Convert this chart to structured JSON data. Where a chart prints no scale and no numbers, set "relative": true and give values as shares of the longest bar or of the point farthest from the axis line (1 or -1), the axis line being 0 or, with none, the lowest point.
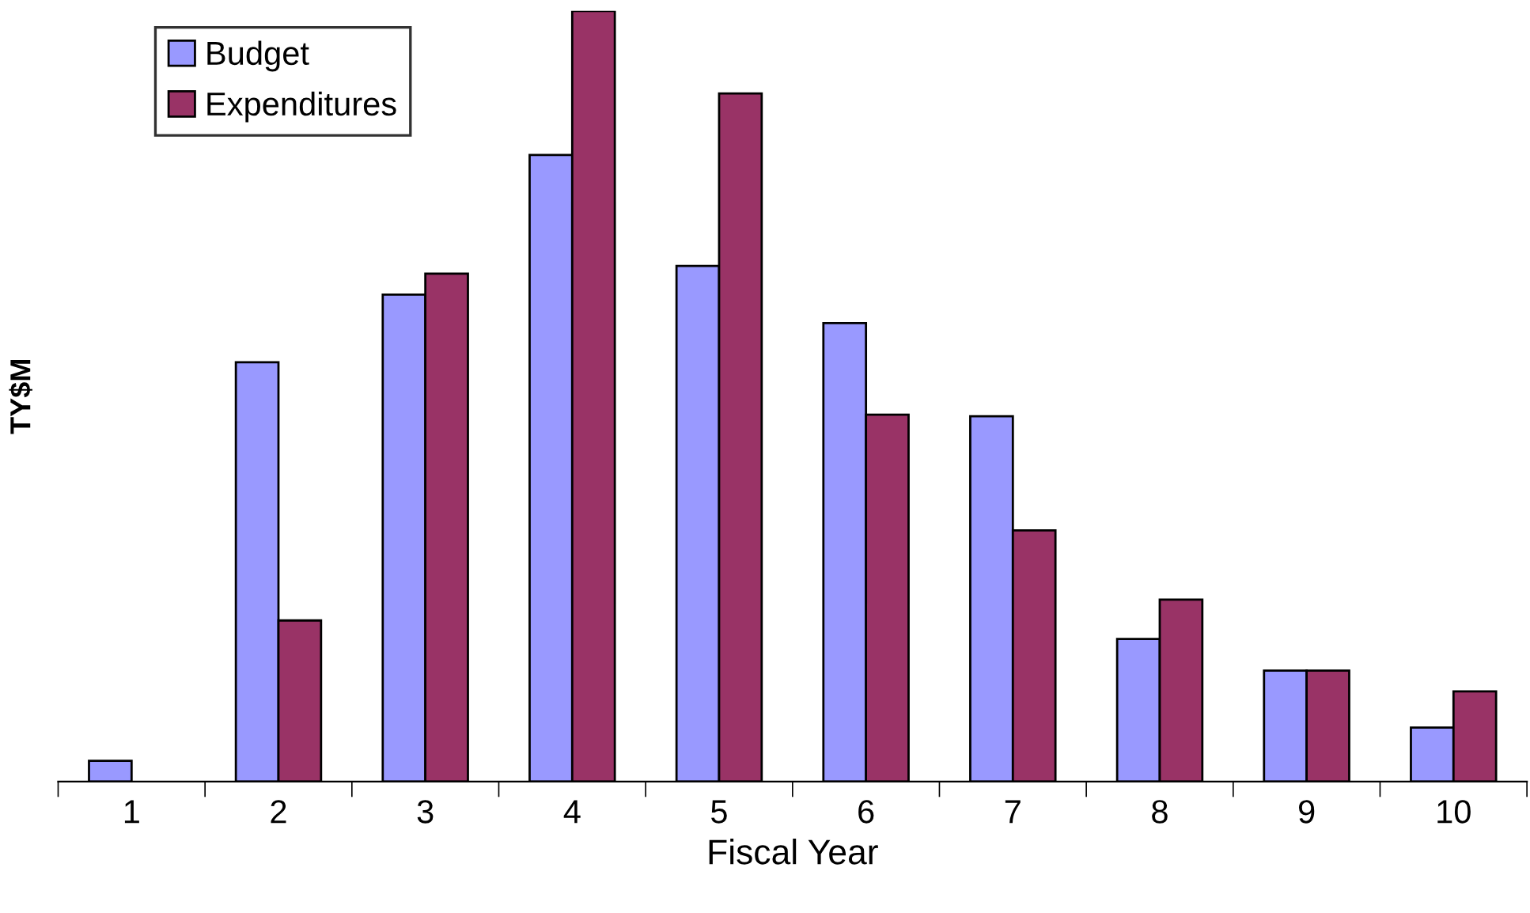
{
  "chart_data": {
    "type": "bar",
    "relative": true,
    "xlabel": "Fiscal Year",
    "ylabel": "TY$M",
    "categories": [
      "1",
      "2",
      "3",
      "4",
      "5",
      "6",
      "7",
      "8",
      "9",
      "10"
    ],
    "series": [
      {
        "name": "Budget",
        "color": "#9999ff",
        "values": [
          0.027,
          0.544,
          0.632,
          0.813,
          0.669,
          0.595,
          0.474,
          0.185,
          0.144,
          0.07
        ]
      },
      {
        "name": "Expenditures",
        "color": "#993366",
        "values": [
          null,
          0.209,
          0.659,
          1,
          0.893,
          0.476,
          0.326,
          0.236,
          0.144,
          0.117
        ]
      }
    ],
    "legend": "top left",
    "grid": false
  }
}
